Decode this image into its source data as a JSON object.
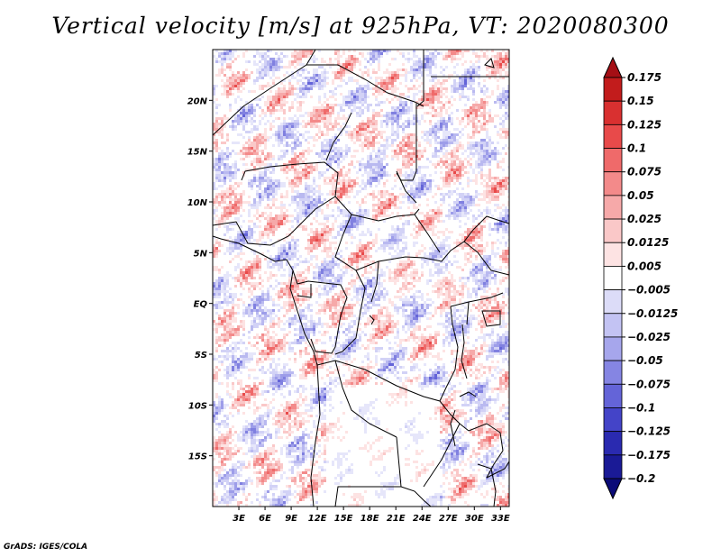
{
  "chart_data": {
    "type": "heatmap",
    "title": "Vertical velocity [m/s] at 925hPa, VT: 2020080300",
    "variable": "Vertical velocity",
    "units": "m/s",
    "level": "925hPa",
    "valid_time": "2020080300",
    "x_axis": {
      "range": [
        0,
        34
      ],
      "ticks": [
        3,
        6,
        9,
        12,
        15,
        18,
        21,
        24,
        27,
        30,
        33
      ],
      "tick_labels": [
        "3E",
        "6E",
        "9E",
        "12E",
        "15E",
        "18E",
        "21E",
        "24E",
        "27E",
        "30E",
        "33E"
      ]
    },
    "y_axis": {
      "range": [
        -20,
        25
      ],
      "ticks": [
        20,
        15,
        10,
        5,
        0,
        -5,
        -10,
        -15
      ],
      "tick_labels": [
        "20N",
        "15N",
        "10N",
        "5N",
        "EQ",
        "5S",
        "10S",
        "15S"
      ]
    },
    "colorbar": {
      "levels": [
        "0.175",
        "0.15",
        "0.125",
        "0.1",
        "0.075",
        "0.05",
        "0.025",
        "0.0125",
        "0.005",
        "-0.005",
        "-0.0125",
        "-0.025",
        "-0.05",
        "-0.075",
        "-0.1",
        "-0.125",
        "-0.175",
        "-0.2"
      ],
      "colors": [
        "#a50f15",
        "#c21c1c",
        "#d93030",
        "#e84a4a",
        "#ef6a6a",
        "#f38a8a",
        "#f6a9a9",
        "#fac8c8",
        "#fde3e3",
        "#ffffff",
        "#dcdcf8",
        "#c3c3f3",
        "#a6a6ec",
        "#8585e3",
        "#6464d8",
        "#4444c8",
        "#2a2ab0",
        "#1a1a96",
        "#0b0b78"
      ]
    }
  },
  "footer": {
    "credit": "GrADS: IGES/COLA"
  }
}
